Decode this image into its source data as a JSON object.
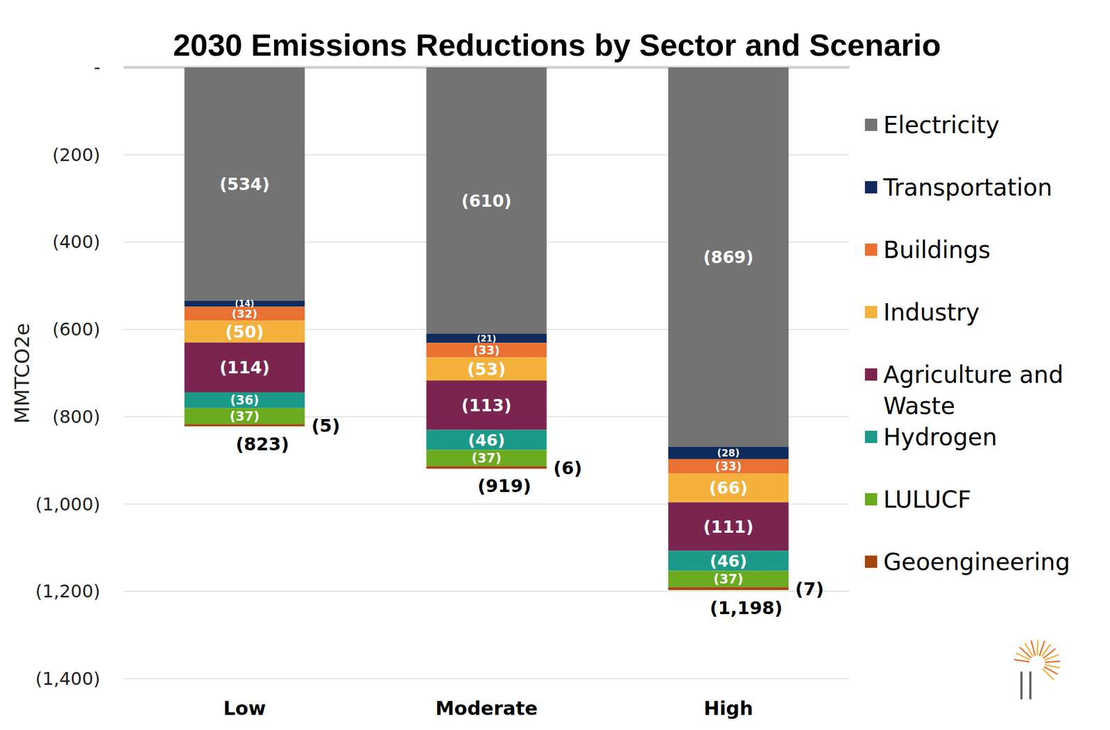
{
  "chart_data": {
    "type": "bar",
    "title": "2030 Emissions Reductions by Sector and Scenario",
    "y_label": "MMTCO2e",
    "categories": [
      "Low",
      "Moderate",
      "High"
    ],
    "stacked": true,
    "data_labels": true,
    "grid": true,
    "legend": "right",
    "ylim": [
      -1400,
      0
    ],
    "yticks": [
      {
        "value": 0,
        "label": "-"
      },
      {
        "value": -200,
        "label": "(200)"
      },
      {
        "value": -400,
        "label": "(400)"
      },
      {
        "value": -600,
        "label": "(600)"
      },
      {
        "value": -800,
        "label": "(800)"
      },
      {
        "value": -1000,
        "label": "(1,000)"
      },
      {
        "value": -1200,
        "label": "(1,200)"
      },
      {
        "value": -1400,
        "label": "(1,400)"
      }
    ],
    "series": [
      {
        "name": "Electricity",
        "color": "#737373",
        "values": [
          -534,
          -610,
          -869
        ],
        "value_labels": [
          "(534)",
          "(610)",
          "(869)"
        ]
      },
      {
        "name": "Transportation",
        "color": "#0e2b5c",
        "values": [
          -14,
          -21,
          -28
        ],
        "value_labels": [
          "(14)",
          "(21)",
          "(28)"
        ]
      },
      {
        "name": "Buildings",
        "color": "#e97132",
        "values": [
          -32,
          -33,
          -33
        ],
        "value_labels": [
          "(32)",
          "(33)",
          "(33)"
        ]
      },
      {
        "name": "Industry",
        "color": "#f4b13c",
        "values": [
          -50,
          -53,
          -66
        ],
        "value_labels": [
          "(50)",
          "(53)",
          "(66)"
        ]
      },
      {
        "name": "Agriculture and Waste",
        "color": "#7b2450",
        "values": [
          -114,
          -113,
          -111
        ],
        "value_labels": [
          "(114)",
          "(113)",
          "(111)"
        ]
      },
      {
        "name": "Hydrogen",
        "color": "#1b9a89",
        "values": [
          -36,
          -46,
          -46
        ],
        "value_labels": [
          "(36)",
          "(46)",
          "(46)"
        ]
      },
      {
        "name": "LULUCF",
        "color": "#6bab1f",
        "values": [
          -37,
          -37,
          -37
        ],
        "value_labels": [
          "(37)",
          "(37)",
          "(37)"
        ]
      },
      {
        "name": "Geoengineering",
        "color": "#a3470f",
        "values": [
          -5,
          -6,
          -7
        ],
        "value_labels": [
          "(5)",
          "(6)",
          "(7)"
        ]
      }
    ],
    "annotations": [
      {
        "text": "(823)",
        "value": -823
      },
      {
        "text": "(919)",
        "value": -919
      },
      {
        "text": "(1,198)",
        "value": -1198
      }
    ]
  }
}
